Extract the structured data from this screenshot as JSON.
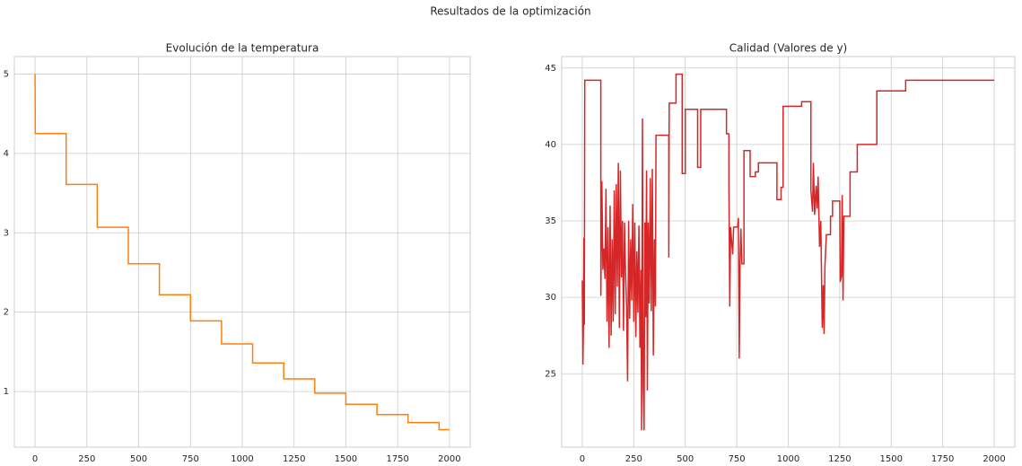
{
  "title": "Resultados de la optimización",
  "chart_data": [
    {
      "type": "line",
      "title": "Evolución de la temperatura",
      "color": "#ff7f0e",
      "grid": true,
      "x": [
        0,
        1,
        150,
        150,
        300,
        300,
        450,
        450,
        600,
        600,
        750,
        750,
        900,
        900,
        1050,
        1050,
        1200,
        1200,
        1350,
        1350,
        1500,
        1500,
        1650,
        1650,
        1800,
        1800,
        1950,
        1950,
        1999
      ],
      "values": [
        5,
        4.25,
        4.25,
        3.61,
        3.61,
        3.07,
        3.07,
        2.61,
        2.61,
        2.22,
        2.22,
        1.89,
        1.89,
        1.6,
        1.6,
        1.36,
        1.36,
        1.16,
        1.16,
        0.98,
        0.98,
        0.84,
        0.84,
        0.71,
        0.71,
        0.61,
        0.61,
        0.52,
        0.52
      ],
      "xlim": [
        -100,
        2100
      ],
      "xticks": [
        0,
        250,
        500,
        750,
        1000,
        1250,
        1500,
        1750,
        2000
      ],
      "ylim": [
        0.3,
        5.22
      ],
      "yticks": [
        1,
        2,
        3,
        4,
        5
      ]
    },
    {
      "type": "line",
      "title": "Calidad (Valores de y)",
      "color": "#d62728",
      "grid": true,
      "x": [
        0,
        3,
        6,
        8,
        10,
        12,
        90,
        90,
        95,
        100,
        105,
        110,
        115,
        120,
        125,
        130,
        135,
        140,
        145,
        150,
        155,
        160,
        165,
        170,
        175,
        180,
        185,
        190,
        195,
        200,
        205,
        210,
        215,
        220,
        225,
        230,
        235,
        240,
        245,
        250,
        255,
        260,
        265,
        270,
        275,
        280,
        285,
        288,
        292,
        296,
        300,
        304,
        308,
        312,
        316,
        320,
        325,
        330,
        335,
        340,
        345,
        350,
        355,
        358,
        420,
        420,
        422,
        455,
        455,
        485,
        485,
        500,
        500,
        560,
        560,
        575,
        575,
        700,
        700,
        712,
        712,
        716,
        720,
        730,
        735,
        755,
        758,
        762,
        766,
        770,
        775,
        785,
        785,
        815,
        815,
        840,
        840,
        855,
        855,
        945,
        945,
        965,
        965,
        975,
        975,
        1065,
        1065,
        1110,
        1110,
        1118,
        1122,
        1128,
        1135,
        1140,
        1145,
        1152,
        1158,
        1165,
        1170,
        1174,
        1178,
        1185,
        1205,
        1205,
        1215,
        1215,
        1250,
        1252,
        1258,
        1262,
        1266,
        1270,
        1300,
        1300,
        1335,
        1335,
        1430,
        1430,
        1570,
        1570,
        2000
      ],
      "values": [
        31.1,
        25.6,
        28.5,
        33.9,
        28.2,
        44.2,
        44.2,
        30.1,
        37.6,
        31.8,
        33.2,
        31.2,
        37.1,
        28.4,
        34.6,
        26.7,
        36.0,
        27.5,
        33.8,
        28.4,
        37.0,
        28.9,
        37.4,
        30.7,
        38.8,
        28.0,
        38.3,
        31.3,
        35.0,
        27.8,
        34.9,
        31.6,
        29.5,
        24.5,
        35.0,
        28.6,
        33.8,
        29.8,
        36.1,
        28.4,
        34.9,
        27.4,
        33.0,
        29.0,
        34.7,
        26.7,
        31.8,
        21.3,
        41.7,
        24.2,
        21.3,
        34.9,
        28.7,
        38.3,
        23.9,
        34.9,
        29.6,
        37.8,
        29.1,
        38.4,
        26.2,
        33.8,
        29.4,
        40.6,
        40.6,
        32.6,
        42.7,
        42.7,
        44.6,
        44.6,
        38.1,
        38.1,
        42.3,
        42.3,
        38.5,
        38.5,
        42.3,
        42.3,
        40.7,
        40.7,
        37.3,
        29.4,
        34.6,
        32.8,
        34.6,
        34.6,
        35.2,
        26.0,
        32.2,
        34.5,
        32.2,
        32.2,
        39.6,
        39.6,
        37.9,
        37.9,
        38.2,
        38.2,
        38.8,
        38.8,
        36.4,
        36.4,
        37.2,
        37.2,
        42.5,
        42.5,
        42.8,
        42.8,
        37.0,
        35.6,
        38.8,
        35.4,
        37.3,
        35.8,
        37.9,
        33.3,
        35.0,
        28.0,
        30.8,
        27.6,
        32.0,
        34.1,
        34.1,
        35.3,
        35.3,
        36.3,
        36.3,
        31.0,
        31.4,
        36.7,
        29.8,
        35.3,
        35.3,
        38.2,
        38.2,
        40.0,
        40.0,
        43.5,
        43.5,
        44.2,
        44.2
      ],
      "xlim": [
        -100,
        2100
      ],
      "xticks": [
        0,
        250,
        500,
        750,
        1000,
        1250,
        1500,
        1750,
        2000
      ],
      "ylim": [
        20.2,
        45.75
      ],
      "yticks": [
        25,
        30,
        35,
        40,
        45
      ]
    }
  ]
}
